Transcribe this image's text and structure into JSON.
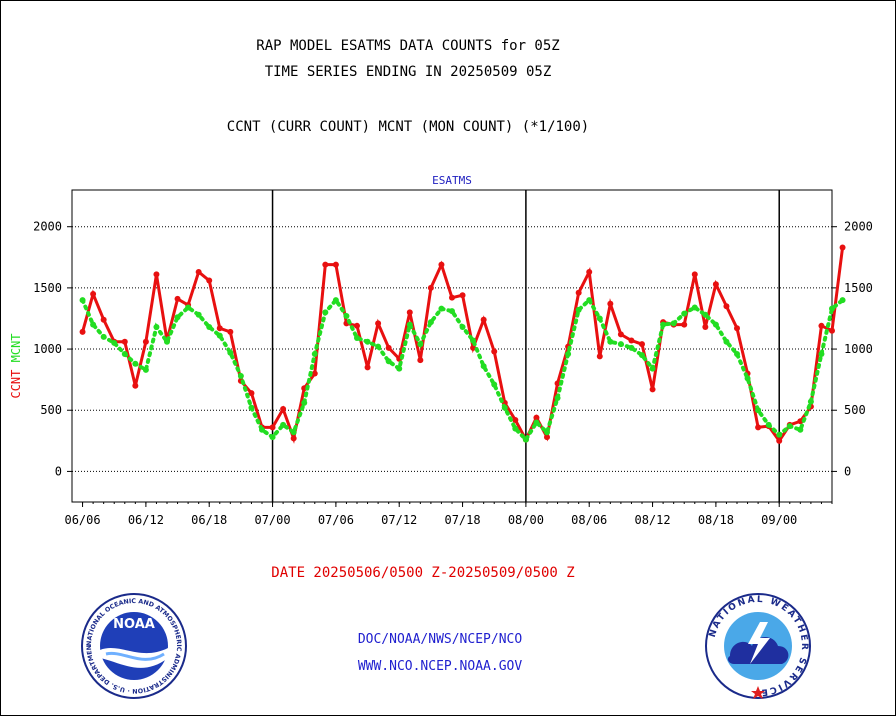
{
  "titles": {
    "line1": "RAP MODEL ESATMS DATA COUNTS for 05Z",
    "line2": "TIME SERIES ENDING IN 20250509 05Z",
    "line3": "CCNT (CURR COUNT) MCNT (MON COUNT) (*1/100)"
  },
  "footer": {
    "date_range": "DATE 20250506/0500 Z-20250509/0500 Z",
    "org": "DOC/NOAA/NWS/NCEP/NCO",
    "url": "WWW.NCO.NCEP.NOAA.GOV"
  },
  "logos": {
    "left": {
      "name": "noaa-logo",
      "text": "NOAA",
      "ring_text": "NATIONAL OCEANIC AND ATMOSPHERIC ADMINISTRATION · U.S. DEPARTMENT OF COMMERCE"
    },
    "right": {
      "name": "nws-logo",
      "ring_text": "NATIONAL WEATHER SERVICE"
    }
  },
  "colors": {
    "ccnt": "#e81010",
    "mcnt": "#22dd22",
    "subtitle": "#2020c0",
    "axis": "#000000"
  },
  "chart_data": {
    "type": "line",
    "subtitle": "ESATMS",
    "ylabel_left": [
      {
        "text": "CCNT",
        "color": "#e81010"
      },
      {
        "text": "MCNT",
        "color": "#22dd22"
      }
    ],
    "ylim": [
      -250,
      2300
    ],
    "yticks": [
      0,
      500,
      1000,
      1500,
      2000
    ],
    "xlim": [
      -1,
      71
    ],
    "xticks": [
      {
        "x": 0,
        "label": "06/06"
      },
      {
        "x": 6,
        "label": "06/12"
      },
      {
        "x": 12,
        "label": "06/18"
      },
      {
        "x": 18,
        "label": "07/00"
      },
      {
        "x": 24,
        "label": "07/06"
      },
      {
        "x": 30,
        "label": "07/12"
      },
      {
        "x": 36,
        "label": "07/18"
      },
      {
        "x": 42,
        "label": "08/00"
      },
      {
        "x": 48,
        "label": "08/06"
      },
      {
        "x": 54,
        "label": "08/12"
      },
      {
        "x": 60,
        "label": "08/18"
      },
      {
        "x": 66,
        "label": "09/00"
      }
    ],
    "day_boundaries": [
      18,
      42,
      66
    ],
    "grid": true,
    "series": [
      {
        "name": "CCNT",
        "style": "solid",
        "color": "#e81010",
        "values": [
          1140,
          1450,
          1240,
          1060,
          1060,
          700,
          1060,
          1610,
          1070,
          1410,
          1360,
          1630,
          1560,
          1170,
          1140,
          740,
          640,
          360,
          360,
          510,
          270,
          680,
          800,
          1690,
          1690,
          1210,
          1190,
          850,
          1210,
          1010,
          920,
          1300,
          910,
          1500,
          1690,
          1420,
          1440,
          1010,
          1240,
          980,
          560,
          420,
          260,
          440,
          280,
          720,
          1020,
          1460,
          1630,
          940,
          1370,
          1120,
          1070,
          1040,
          670,
          1220,
          1200,
          1200,
          1610,
          1180,
          1530,
          1350,
          1170,
          800,
          360,
          370,
          250,
          380,
          410,
          530,
          1190,
          1150,
          1830
        ]
      },
      {
        "name": "MCNT",
        "style": "dotted",
        "color": "#22dd22",
        "values": [
          1400,
          1200,
          1100,
          1050,
          960,
          880,
          830,
          1180,
          1060,
          1260,
          1340,
          1280,
          1180,
          1110,
          970,
          780,
          520,
          340,
          280,
          380,
          320,
          560,
          960,
          1300,
          1400,
          1270,
          1090,
          1060,
          1020,
          900,
          840,
          1200,
          1040,
          1220,
          1330,
          1310,
          1180,
          1070,
          860,
          710,
          520,
          350,
          260,
          400,
          320,
          600,
          960,
          1320,
          1400,
          1250,
          1060,
          1040,
          1010,
          950,
          840,
          1200,
          1210,
          1290,
          1340,
          1280,
          1200,
          1060,
          960,
          760,
          500,
          380,
          300,
          370,
          340,
          570,
          960,
          1330,
          1400
        ]
      }
    ]
  }
}
